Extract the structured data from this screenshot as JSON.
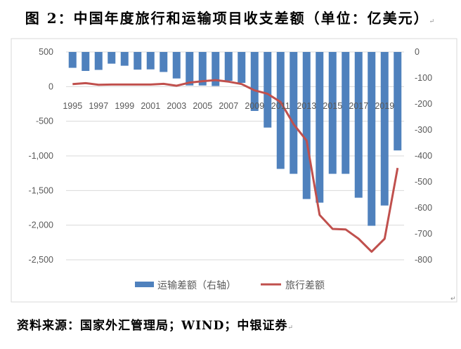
{
  "title": "图 2：中国年度旅行和运输项目收支差额（单位：亿美元）",
  "footer": "资料来源：国家外汇管理局；WIND；中银证券",
  "para_mark": "↵",
  "chart_data": {
    "type": "bar+line",
    "title": "图 2：中国年度旅行和运输项目收支差额（单位：亿美元）",
    "categories": [
      "1995",
      "1996",
      "1997",
      "1998",
      "1999",
      "2000",
      "2001",
      "2002",
      "2003",
      "2004",
      "2005",
      "2006",
      "2007",
      "2008",
      "2009",
      "2010",
      "2011",
      "2012",
      "2013",
      "2014",
      "2015",
      "2016",
      "2017",
      "2018",
      "2019",
      "2020"
    ],
    "x_tick_labels": [
      "1995",
      "1997",
      "1999",
      "2001",
      "2003",
      "2005",
      "2007",
      "2009",
      "2011",
      "2013",
      "2015",
      "2017",
      "2019"
    ],
    "left_axis": {
      "ylim": [
        -2500,
        500
      ],
      "ticks": [
        500,
        0,
        -500,
        -1000,
        -1500,
        -2000,
        -2500
      ],
      "tick_labels": [
        "500",
        "0",
        "-500",
        "-1,000",
        "-1,500",
        "-2,000",
        "-2,500"
      ]
    },
    "right_axis": {
      "ylim": [
        -800,
        0
      ],
      "ticks": [
        0,
        -100,
        -200,
        -300,
        -400,
        -500,
        -600,
        -700,
        -800
      ],
      "tick_labels": [
        "0",
        "-100",
        "-200",
        "-300",
        "-400",
        "-500",
        "-600",
        "-700",
        "-800"
      ]
    },
    "grid": true,
    "legend_position": "bottom",
    "series": [
      {
        "name": "运输差额（右轴）",
        "type": "bar",
        "axis": "right",
        "color": "#4F81BD",
        "values": [
          -61,
          -73,
          -69,
          -45,
          -53,
          -68,
          -67,
          -77,
          -102,
          -129,
          -129,
          -131,
          -111,
          -119,
          -227,
          -291,
          -450,
          -469,
          -566,
          -580,
          -469,
          -469,
          -561,
          -669,
          -591,
          -379
        ]
      },
      {
        "name": "旅行差额",
        "type": "line",
        "axis": "left",
        "color": "#C0504D",
        "values": [
          37,
          50,
          27,
          30,
          30,
          30,
          30,
          40,
          13,
          58,
          78,
          94,
          71,
          37,
          -54,
          -104,
          -223,
          -543,
          -779,
          -1852,
          -2054,
          -2061,
          -2196,
          -2382,
          -2196,
          -1174
        ]
      }
    ]
  }
}
